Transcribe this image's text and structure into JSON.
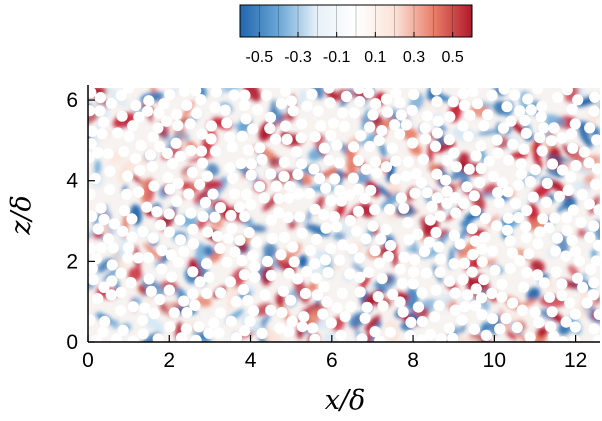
{
  "chart_data": {
    "type": "heatmap",
    "title": "",
    "xlabel": "x/δ",
    "ylabel": "z/δ",
    "xlim": [
      0,
      12.6
    ],
    "ylim": [
      0,
      6.3
    ],
    "x_ticks": [
      0,
      2,
      4,
      6,
      8,
      10,
      12
    ],
    "y_ticks": [
      0,
      2,
      4,
      6
    ],
    "colorbar": {
      "range": [
        -0.6,
        0.6
      ],
      "tick_values": [
        -0.5,
        -0.3,
        -0.1,
        0.1,
        0.3,
        0.5
      ],
      "tick_labels": [
        "-0.5",
        "-0.3",
        "-0.1",
        "0.1",
        "0.3",
        "0.5"
      ],
      "levels": 12,
      "colormap": [
        "#2166ac",
        "#6aa7d6",
        "#e8f1f8",
        "#ffffff",
        "#fbe3d8",
        "#e8806a",
        "#b2182b"
      ]
    },
    "field_description": "instantaneous fluctuation field with white circular obstacles (particles) scattered over the domain",
    "particle_color": "#ffffff",
    "grid": false
  }
}
